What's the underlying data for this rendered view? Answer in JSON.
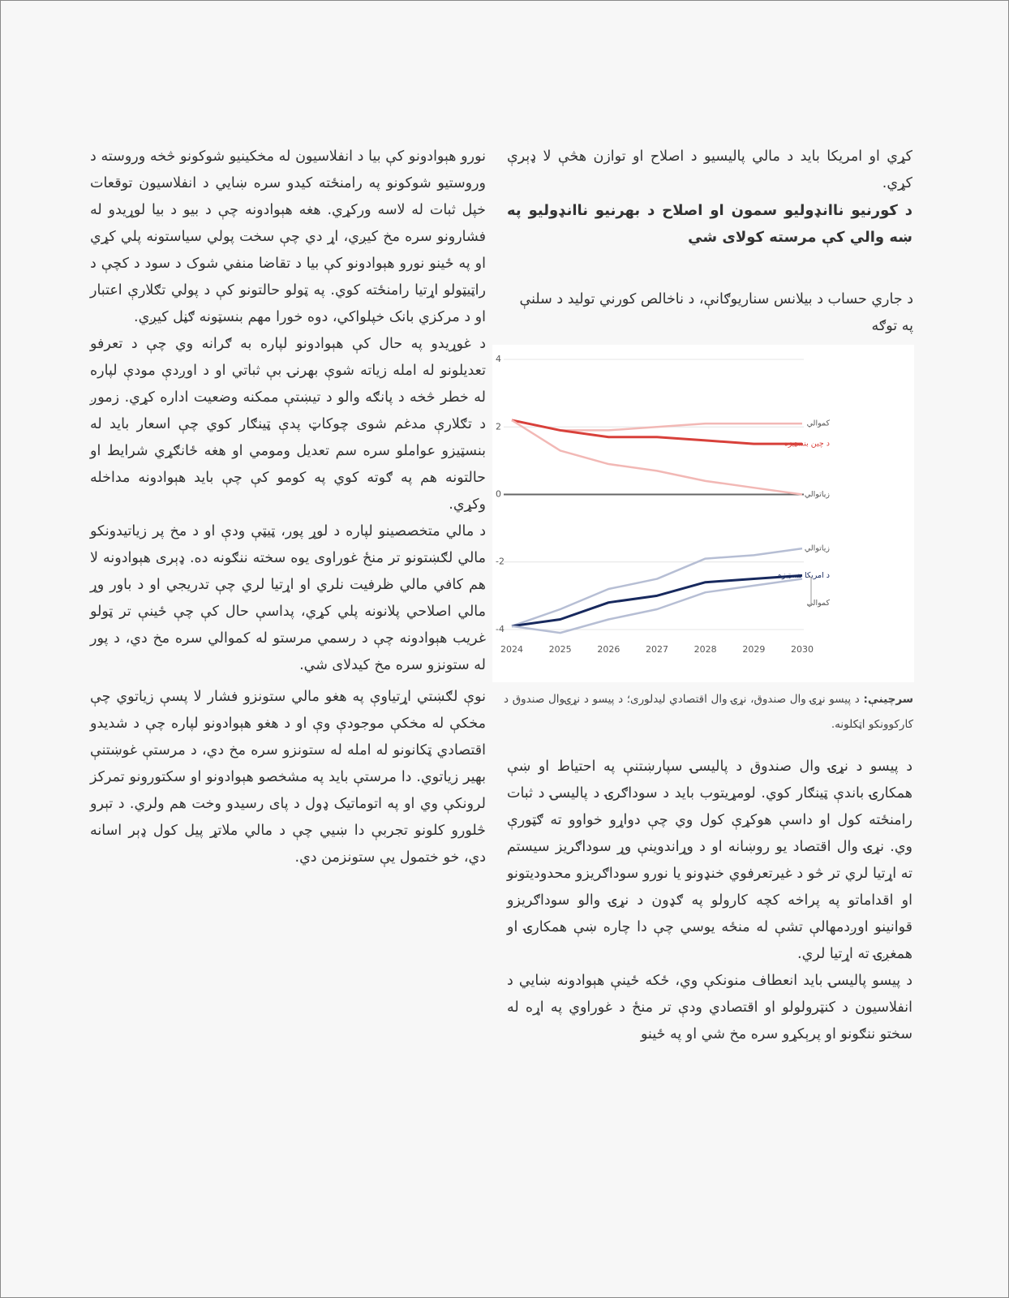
{
  "right_column": {
    "paragraph_1": "کړي او امریکا باید د مالي پالیسیو د اصلاح او توازن هڅې لا ډېرې کړي.",
    "heading": "د کورنیو ناانډولیو سمون او اصلاح د بهرنیو ناانډولیو په ښه والي کې مرسته کولای شي",
    "paragraph_2": "د پیسو د نړۍ وال صندوق د پالیسۍ سپارښتنې په احتیاط او ښې همکارۍ باندې ټینګار کوي. لومړیتوب باید د سوداګرۍ د پالیسۍ د ثبات رامنځته کول او داسې هوکړې کول وي چې دواړو خواوو ته ګټورې وي. نړۍ وال اقتصاد یو روښانه او د وړاندوینې وړ سوداګریز سیستم ته اړتیا لري تر څو د غیرتعرفوي خنډونو یا نورو سوداګریزو محدودیتونو او اقداماتو په پراخه کچه کارولو په ګډون د نړۍ والو سوداګریزو قوانینو اوږدمهالې تشې له منځه یوسي چې دا چاره ښې همکارۍ او همغږۍ ته اړتیا لري.",
    "paragraph_3": "د پیسو پالیسۍ باید انعطاف منونکې وي، ځکه ځینې هېوادونه ښایي د انفلاسیون د کنټرولولو او اقتصادي ودې تر منځ د غوراوي په اړه له سختو ننګونو او پرېکړو سره مخ شي او په ځینو"
  },
  "left_column": {
    "paragraph_1": "نورو هېوادونو کې بیا د انفلاسیون له مخکینیو شوکونو څخه وروسته د وروستیو شوکونو په رامنځته کیدو سره ښایي د انفلاسیون توقعات خپل ثبات له لاسه ورکړي. هغه هېوادونه چې د بیو د بیا لوړیدو له فشارونو سره مخ کیږي، اړ دي چې سخت پولي سیاستونه پلي کړي او په ځینو نورو هېوادونو کې بیا د تقاضا منفي شوک د سود د کچې د راټیټولو اړتیا رامنځته کوي. په ټولو حالتونو کې د پولي تګلارې اعتبار او د مرکزي بانک خپلواکي، دوه خورا مهم بنسټونه ګڼل کیږي.",
    "paragraph_2": "د غوړیدو په حال کې هېوادونو لپاره به ګرانه وي چې د تعرفو تعدیلونو له امله زیاته شوې بهرنۍ بې ثباتي او د اوږدې مودې لپاره له خطر څخه د پانګه والو د تیښتې ممکنه وضعیت اداره کړي. زموږ د تګلارې مدغم شوی چوکاټ پدې ټینګار کوي چې اسعار باید له بنسټیزو عواملو سره سم تعدیل ومومي او هغه ځانګړي شرایط او حالتونه هم په ګوته کوي په کومو کې چې باید هېوادونه مداخله وکړي.",
    "paragraph_3": "د مالي متخصصینو لپاره د لوړ پور، ټیټې ودې او د مخ پر زیاتیدونکو مالي لګښتونو تر منځ غوراوی یوه سخته ننګونه ده. ډېری هېوادونه لا هم کافي مالي ظرفیت نلري او اړتیا لري چې تدریجي او د باور وړ مالي اصلاحي پلانونه پلي کړي، پداسې حال کې چې ځینې تر ټولو غریب هېوادونه چې د رسمي مرستو له کموالي سره مخ دي، د پور له ستونزو سره مخ کیدلای شي.",
    "paragraph_4": "نوې لګښتي اړتیاوې په هغو مالي ستونزو فشار لا پسې زیاتوي چې مخکې له مخکې موجودې وې او د هغو هېوادونو لپاره چې د شدیدو اقتصادي ټکانونو له امله له ستونزو سره مخ دي، د مرستې غوښتنې بهیر زیاتوي. دا مرستې باید په مشخصو هېوادونو او سکتورونو تمرکز لرونکې وي او په اتوماتیک ډول د پای رسیدو وخت هم ولري. د تېرو څلورو کلونو تجربې دا ښیي چې د مالي ملاتړ پیل کول ډېر اسانه دي، خو ختمول یې ستونزمن دي."
  },
  "chart_data": {
    "type": "line",
    "title": "د جاري حساب د بیلانس سناریوګانې، د ناخالص کورني تولید د سلنې په توګه",
    "source_label": "سرچینې:",
    "source": "د پیسو نړۍ وال صندوق، نړۍ وال اقتصادي لیدلوری؛ د پیسو د نړۍوال صندوق د کارکوونکو اټکلونه.",
    "x": [
      2024,
      2025,
      2026,
      2027,
      2028,
      2029,
      2030
    ],
    "xlim": [
      2024,
      2030
    ],
    "xticks": [
      2024,
      2025,
      2026,
      2027,
      2028,
      2029,
      2030
    ],
    "ylim": [
      -4.2,
      4.2
    ],
    "yticks": [
      -4,
      -2,
      0,
      2,
      4
    ],
    "grid": true,
    "series": [
      {
        "name": "كموالي",
        "color": "#f2b8b5",
        "values": [
          2.2,
          1.9,
          1.9,
          2.0,
          2.1,
          2.1,
          2.1
        ]
      },
      {
        "name": "د چين بنسټيزه",
        "color": "#d8403a",
        "values": [
          2.2,
          1.9,
          1.7,
          1.7,
          1.6,
          1.5,
          1.5
        ]
      },
      {
        "name": "زياتوالي",
        "color": "#f2b8b5",
        "values": [
          2.2,
          1.3,
          0.9,
          0.7,
          0.4,
          0.2,
          0.0
        ]
      },
      {
        "name": "زياتوالي",
        "color": "#b6bed4",
        "values": [
          -3.9,
          -3.4,
          -2.8,
          -2.5,
          -1.9,
          -1.8,
          -1.6
        ]
      },
      {
        "name": "د امریکا بنسټيزه",
        "color": "#17295e",
        "values": [
          -3.9,
          -3.7,
          -3.2,
          -3.0,
          -2.6,
          -2.5,
          -2.4
        ]
      },
      {
        "name": "كموالي",
        "color": "#b6bed4",
        "values": [
          -3.9,
          -4.1,
          -3.7,
          -3.4,
          -2.9,
          -2.7,
          -2.5
        ]
      }
    ]
  }
}
